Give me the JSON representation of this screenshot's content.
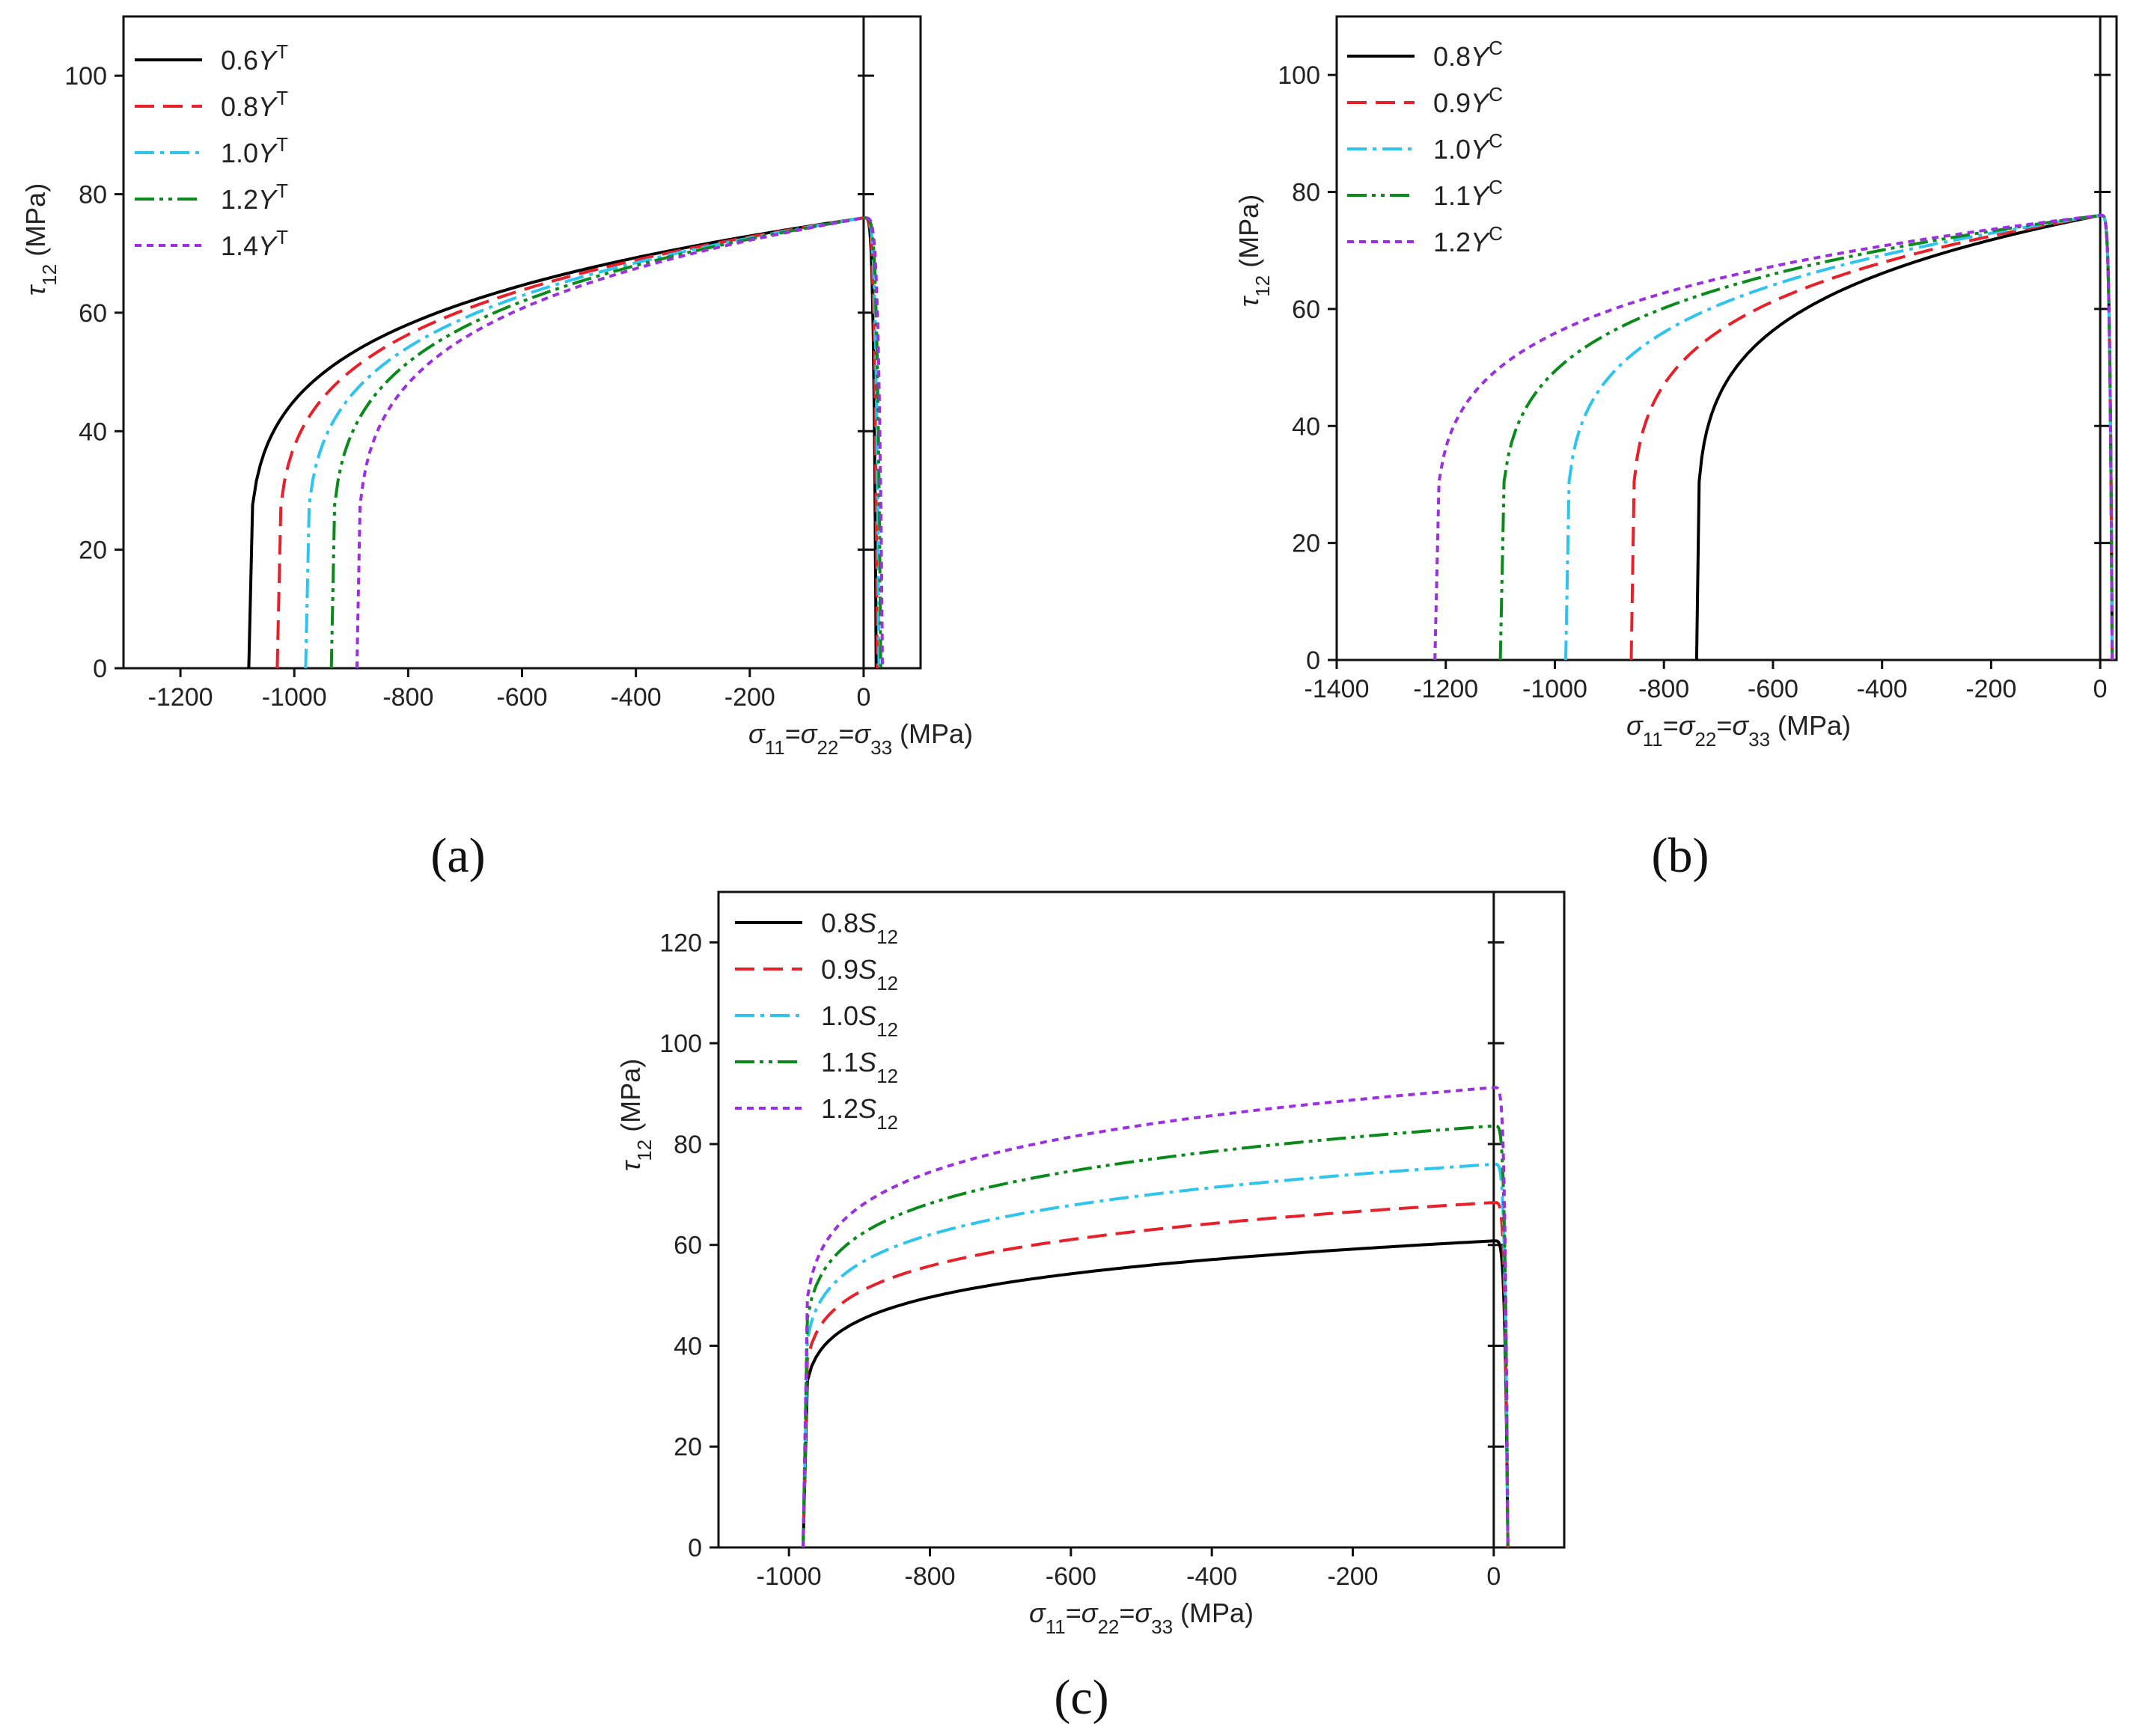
{
  "figure": {
    "panel_labels": [
      "(a)",
      "(b)",
      "(c)"
    ]
  },
  "chart_data": [
    {
      "type": "line",
      "panel": "(a)",
      "xlabel": "σ11=σ22=σ33 (MPa)",
      "ylabel": "τ12 (MPa)",
      "xlim": [
        -1300,
        100
      ],
      "ylim": [
        0,
        110
      ],
      "xticks": [
        -1200,
        -1000,
        -800,
        -600,
        -400,
        -200,
        0
      ],
      "yticks": [
        0,
        20,
        40,
        60,
        80,
        100
      ],
      "legend_position": "top-left",
      "series": [
        {
          "name": "0.6YT",
          "prefix": "0.6",
          "symbol": "Y",
          "sup": "T",
          "sub": "",
          "color": "#000000",
          "dash": "solid",
          "sigma_min": -1080,
          "sigma_max": 22,
          "tau_peak": 76,
          "shape": 0.2
        },
        {
          "name": "0.8YT",
          "prefix": "0.8",
          "symbol": "Y",
          "sup": "T",
          "sub": "",
          "color": "#e8202a",
          "dash": "dash",
          "sigma_min": -1030,
          "sigma_max": 24,
          "tau_peak": 76,
          "shape": 0.2
        },
        {
          "name": "1.0YT",
          "prefix": "1.0",
          "symbol": "Y",
          "sup": "T",
          "sub": "",
          "color": "#2ec4f0",
          "dash": "dashdot",
          "sigma_min": -980,
          "sigma_max": 27,
          "tau_peak": 76,
          "shape": 0.2
        },
        {
          "name": "1.2YT",
          "prefix": "1.2",
          "symbol": "Y",
          "sup": "T",
          "sub": "",
          "color": "#0a8a1a",
          "dash": "dashdotdot",
          "sigma_min": -935,
          "sigma_max": 30,
          "tau_peak": 76,
          "shape": 0.2
        },
        {
          "name": "1.4YT",
          "prefix": "1.4",
          "symbol": "Y",
          "sup": "T",
          "sub": "",
          "color": "#9b30e0",
          "dash": "shortdash",
          "sigma_min": -890,
          "sigma_max": 33,
          "tau_peak": 76,
          "shape": 0.2
        }
      ]
    },
    {
      "type": "line",
      "panel": "(b)",
      "xlabel": "σ11=σ22=σ33 (MPa)",
      "ylabel": "τ12 (MPa)",
      "xlim": [
        -1400,
        30
      ],
      "ylim": [
        0,
        110
      ],
      "xticks": [
        -1400,
        -1200,
        -1000,
        -800,
        -600,
        -400,
        -200,
        0
      ],
      "yticks": [
        0,
        20,
        40,
        60,
        80,
        100
      ],
      "legend_position": "top-left",
      "series": [
        {
          "name": "0.8YC",
          "prefix": "0.8",
          "symbol": "Y",
          "sup": "C",
          "sub": "",
          "color": "#000000",
          "dash": "solid",
          "sigma_min": -740,
          "sigma_max": 22,
          "tau_peak": 76,
          "shape": 0.18
        },
        {
          "name": "0.9YC",
          "prefix": "0.9",
          "symbol": "Y",
          "sup": "C",
          "sub": "",
          "color": "#e8202a",
          "dash": "dash",
          "sigma_min": -860,
          "sigma_max": 22,
          "tau_peak": 76,
          "shape": 0.18
        },
        {
          "name": "1.0YC",
          "prefix": "1.0",
          "symbol": "Y",
          "sup": "C",
          "sub": "",
          "color": "#2ec4f0",
          "dash": "dashdot",
          "sigma_min": -980,
          "sigma_max": 22,
          "tau_peak": 76,
          "shape": 0.18
        },
        {
          "name": "1.1YC",
          "prefix": "1.1",
          "symbol": "Y",
          "sup": "C",
          "sub": "",
          "color": "#0a8a1a",
          "dash": "dashdotdot",
          "sigma_min": -1100,
          "sigma_max": 22,
          "tau_peak": 76,
          "shape": 0.18
        },
        {
          "name": "1.2YC",
          "prefix": "1.2",
          "symbol": "Y",
          "sup": "C",
          "sub": "",
          "color": "#9b30e0",
          "dash": "shortdash",
          "sigma_min": -1220,
          "sigma_max": 22,
          "tau_peak": 76,
          "shape": 0.18
        }
      ]
    },
    {
      "type": "line",
      "panel": "(c)",
      "xlabel": "σ11=σ22=σ33 (MPa)",
      "ylabel": "τ12 (MPa)",
      "xlim": [
        -1100,
        100
      ],
      "ylim": [
        0,
        130
      ],
      "xticks": [
        -1000,
        -800,
        -600,
        -400,
        -200,
        0
      ],
      "yticks": [
        0,
        20,
        40,
        60,
        80,
        100,
        120
      ],
      "legend_position": "top-left",
      "series": [
        {
          "name": "0.8S12",
          "prefix": "0.8",
          "symbol": "S",
          "sup": "",
          "sub": "12",
          "color": "#000000",
          "dash": "solid",
          "sigma_min": -980,
          "sigma_max": 20,
          "tau_peak": 60.8,
          "shape": 0.12
        },
        {
          "name": "0.9S12",
          "prefix": "0.9",
          "symbol": "S",
          "sup": "",
          "sub": "12",
          "color": "#e8202a",
          "dash": "dash",
          "sigma_min": -980,
          "sigma_max": 20,
          "tau_peak": 68.4,
          "shape": 0.12
        },
        {
          "name": "1.0S12",
          "prefix": "1.0",
          "symbol": "S",
          "sup": "",
          "sub": "12",
          "color": "#2ec4f0",
          "dash": "dashdot",
          "sigma_min": -980,
          "sigma_max": 20,
          "tau_peak": 76,
          "shape": 0.12
        },
        {
          "name": "1.1S12",
          "prefix": "1.1",
          "symbol": "S",
          "sup": "",
          "sub": "12",
          "color": "#0a8a1a",
          "dash": "dashdotdot",
          "sigma_min": -980,
          "sigma_max": 20,
          "tau_peak": 83.6,
          "shape": 0.12
        },
        {
          "name": "1.2S12",
          "prefix": "1.2",
          "symbol": "S",
          "sup": "",
          "sub": "12",
          "color": "#9b30e0",
          "dash": "shortdash",
          "sigma_min": -980,
          "sigma_max": 20,
          "tau_peak": 91.2,
          "shape": 0.12
        }
      ]
    }
  ]
}
